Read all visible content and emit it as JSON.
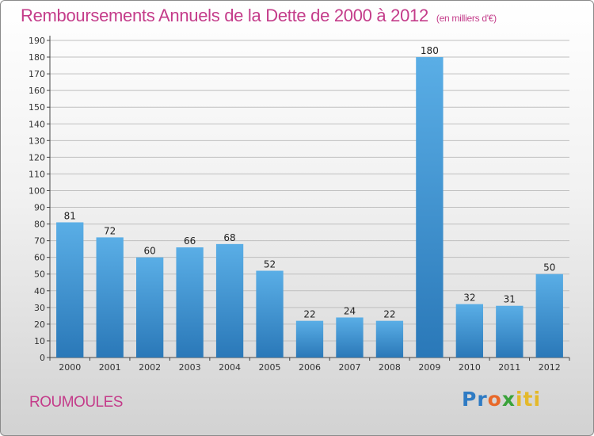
{
  "header": {
    "title": "Remboursements Annuels de la Dette de 2000 à 2012",
    "subtitle": "(en milliers d'€)"
  },
  "footer": {
    "commune": "ROUMOULES",
    "logo_parts": [
      "Pr",
      "o",
      "x",
      "iti"
    ]
  },
  "colors": {
    "title": "#c43c8a",
    "bar_top": "#5aaee6",
    "bar_bottom": "#2a78b8",
    "grid": "#bfbfbf"
  },
  "chart_data": {
    "type": "bar",
    "title": "Remboursements Annuels de la Dette de 2000 à 2012",
    "xlabel": "",
    "ylabel": "",
    "categories": [
      "2000",
      "2001",
      "2002",
      "2003",
      "2004",
      "2005",
      "2006",
      "2007",
      "2008",
      "2009",
      "2010",
      "2011",
      "2012"
    ],
    "values": [
      81,
      72,
      60,
      66,
      68,
      52,
      22,
      24,
      22,
      180,
      32,
      31,
      50
    ],
    "ylim": [
      0,
      190
    ],
    "ytick_step": 10,
    "grid": true,
    "legend": "none"
  }
}
